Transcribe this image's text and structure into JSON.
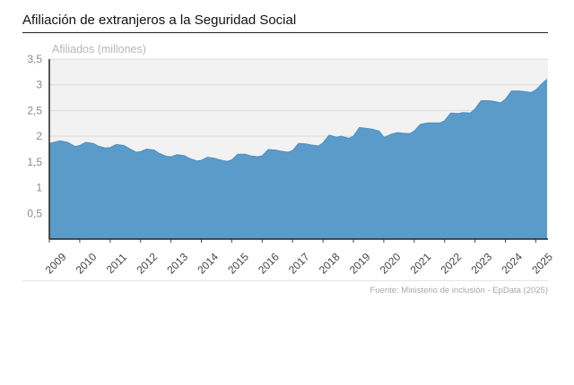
{
  "chart_data": {
    "type": "area",
    "title": "Afiliación de extranjeros a la Seguridad Social",
    "ylabel": "Afiliados (millones)",
    "xlabel": "",
    "ylim": [
      0,
      3.5
    ],
    "yticks": [
      0.5,
      1,
      1.5,
      2,
      2.5,
      3,
      3.5
    ],
    "ytick_labels": [
      "0,5",
      "1",
      "1,5",
      "2",
      "2,5",
      "3",
      "3,5"
    ],
    "xlim": [
      2009,
      2025.4
    ],
    "xticks": [
      "2009",
      "2010",
      "2011",
      "2012",
      "2013",
      "2014",
      "2015",
      "2016",
      "2017",
      "2018",
      "2019",
      "2020",
      "2021",
      "2022",
      "2023",
      "2024",
      "2025"
    ],
    "grid": true,
    "color": "#5b9bc9",
    "series": [
      {
        "name": "Afiliados",
        "x": [
          2009.0,
          2009.08,
          2009.35,
          2009.6,
          2009.85,
          2010.0,
          2010.2,
          2010.45,
          2010.6,
          2010.85,
          2011.0,
          2011.2,
          2011.45,
          2011.6,
          2011.85,
          2012.0,
          2012.2,
          2012.45,
          2012.6,
          2012.85,
          2013.0,
          2013.2,
          2013.45,
          2013.6,
          2013.85,
          2014.0,
          2014.2,
          2014.45,
          2014.6,
          2014.85,
          2015.0,
          2015.2,
          2015.45,
          2015.6,
          2015.85,
          2016.0,
          2016.2,
          2016.45,
          2016.6,
          2016.85,
          2017.0,
          2017.2,
          2017.45,
          2017.6,
          2017.85,
          2018.0,
          2018.2,
          2018.45,
          2018.6,
          2018.85,
          2019.0,
          2019.2,
          2019.45,
          2019.6,
          2019.85,
          2020.0,
          2020.1,
          2020.25,
          2020.45,
          2020.6,
          2020.85,
          2021.0,
          2021.2,
          2021.45,
          2021.6,
          2021.85,
          2022.0,
          2022.2,
          2022.45,
          2022.6,
          2022.85,
          2023.0,
          2023.2,
          2023.45,
          2023.6,
          2023.85,
          2024.0,
          2024.2,
          2024.45,
          2024.6,
          2024.85,
          2025.0,
          2025.2,
          2025.35
        ],
        "values": [
          1.86,
          1.87,
          1.91,
          1.88,
          1.8,
          1.82,
          1.88,
          1.86,
          1.81,
          1.77,
          1.78,
          1.84,
          1.82,
          1.77,
          1.69,
          1.7,
          1.75,
          1.73,
          1.67,
          1.61,
          1.6,
          1.64,
          1.62,
          1.57,
          1.52,
          1.53,
          1.59,
          1.57,
          1.54,
          1.51,
          1.54,
          1.65,
          1.65,
          1.62,
          1.6,
          1.62,
          1.74,
          1.73,
          1.71,
          1.69,
          1.72,
          1.86,
          1.85,
          1.83,
          1.81,
          1.87,
          2.02,
          1.98,
          2.0,
          1.96,
          2.0,
          2.17,
          2.15,
          2.14,
          2.1,
          1.98,
          2.0,
          2.04,
          2.07,
          2.06,
          2.05,
          2.1,
          2.23,
          2.26,
          2.26,
          2.26,
          2.3,
          2.45,
          2.44,
          2.46,
          2.45,
          2.53,
          2.69,
          2.69,
          2.68,
          2.65,
          2.72,
          2.88,
          2.88,
          2.87,
          2.85,
          2.9,
          3.02,
          3.1
        ]
      }
    ]
  },
  "footer": {
    "source": "Fuente: Ministerio de inclusión - EpData (2025)"
  }
}
